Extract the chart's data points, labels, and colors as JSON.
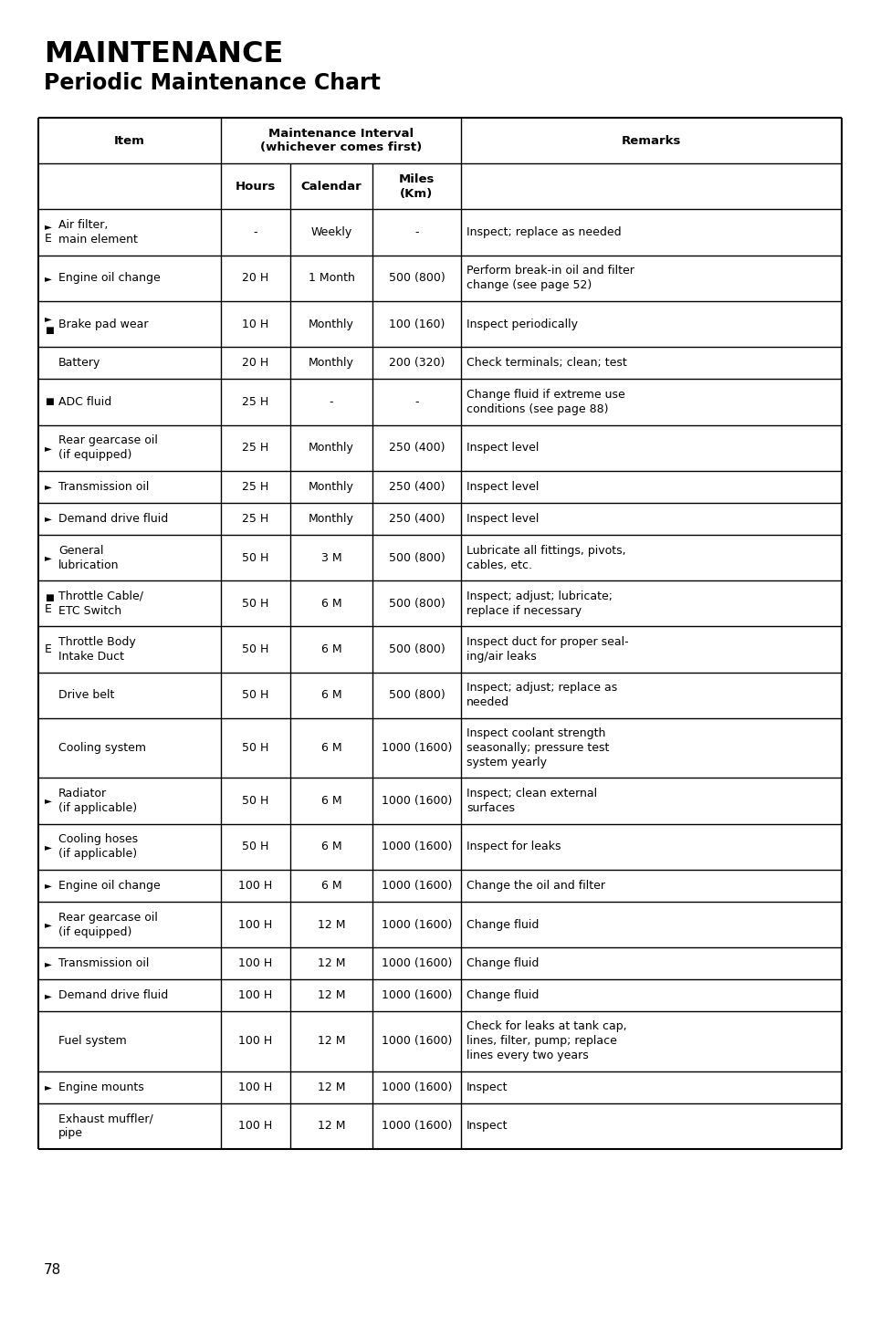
{
  "title_line1": "MAINTENANCE",
  "title_line2": "Periodic Maintenance Chart",
  "page_number": "78",
  "rows": [
    {
      "prefix1": "►",
      "prefix2": "E",
      "item": "Air filter,\nmain element",
      "hours": "-",
      "calendar": "Weekly",
      "miles": "-",
      "remarks": "Inspect; replace as needed",
      "nlines": 2
    },
    {
      "prefix1": "►",
      "prefix2": "",
      "item": "Engine oil change",
      "hours": "20 H",
      "calendar": "1 Month",
      "miles": "500 (800)",
      "remarks": "Perform break-in oil and filter\nchange (see page 52)",
      "nlines": 2
    },
    {
      "prefix1": "►",
      "prefix2": "■",
      "item": "Brake pad wear",
      "hours": "10 H",
      "calendar": "Monthly",
      "miles": "100 (160)",
      "remarks": "Inspect periodically",
      "nlines": 2
    },
    {
      "prefix1": "",
      "prefix2": "",
      "item": "Battery",
      "hours": "20 H",
      "calendar": "Monthly",
      "miles": "200 (320)",
      "remarks": "Check terminals; clean; test",
      "nlines": 1
    },
    {
      "prefix1": "■",
      "prefix2": "",
      "item": "ADC fluid",
      "hours": "25 H",
      "calendar": "-",
      "miles": "-",
      "remarks": "Change fluid if extreme use\nconditions (see page 88)",
      "nlines": 2
    },
    {
      "prefix1": "►",
      "prefix2": "",
      "item": "Rear gearcase oil\n(if equipped)",
      "hours": "25 H",
      "calendar": "Monthly",
      "miles": "250 (400)",
      "remarks": "Inspect level",
      "nlines": 2
    },
    {
      "prefix1": "►",
      "prefix2": "",
      "item": "Transmission oil",
      "hours": "25 H",
      "calendar": "Monthly",
      "miles": "250 (400)",
      "remarks": "Inspect level",
      "nlines": 1
    },
    {
      "prefix1": "►",
      "prefix2": "",
      "item": "Demand drive fluid",
      "hours": "25 H",
      "calendar": "Monthly",
      "miles": "250 (400)",
      "remarks": "Inspect level",
      "nlines": 1
    },
    {
      "prefix1": "►",
      "prefix2": "",
      "item": "General\nlubrication",
      "hours": "50 H",
      "calendar": "3 M",
      "miles": "500 (800)",
      "remarks": "Lubricate all fittings, pivots,\ncables, etc.",
      "nlines": 2
    },
    {
      "prefix1": "■",
      "prefix2": "E",
      "item": "Throttle Cable/\nETC Switch",
      "hours": "50 H",
      "calendar": "6 M",
      "miles": "500 (800)",
      "remarks": "Inspect; adjust; lubricate;\nreplace if necessary",
      "nlines": 2
    },
    {
      "prefix1": "E",
      "prefix2": "",
      "item": "Throttle Body\nIntake Duct",
      "hours": "50 H",
      "calendar": "6 M",
      "miles": "500 (800)",
      "remarks": "Inspect duct for proper seal-\ning/air leaks",
      "nlines": 2
    },
    {
      "prefix1": "",
      "prefix2": "",
      "item": "Drive belt",
      "hours": "50 H",
      "calendar": "6 M",
      "miles": "500 (800)",
      "remarks": "Inspect; adjust; replace as\nneeded",
      "nlines": 2
    },
    {
      "prefix1": "",
      "prefix2": "",
      "item": "Cooling system",
      "hours": "50 H",
      "calendar": "6 M",
      "miles": "1000 (1600)",
      "remarks": "Inspect coolant strength\nseasonally; pressure test\nsystem yearly",
      "nlines": 3
    },
    {
      "prefix1": "►",
      "prefix2": "",
      "item": "Radiator\n(if applicable)",
      "hours": "50 H",
      "calendar": "6 M",
      "miles": "1000 (1600)",
      "remarks": "Inspect; clean external\nsurfaces",
      "nlines": 2
    },
    {
      "prefix1": "►",
      "prefix2": "",
      "item": "Cooling hoses\n(if applicable)",
      "hours": "50 H",
      "calendar": "6 M",
      "miles": "1000 (1600)",
      "remarks": "Inspect for leaks",
      "nlines": 2
    },
    {
      "prefix1": "►",
      "prefix2": "",
      "item": "Engine oil change",
      "hours": "100 H",
      "calendar": "6 M",
      "miles": "1000 (1600)",
      "remarks": "Change the oil and filter",
      "nlines": 1
    },
    {
      "prefix1": "►",
      "prefix2": "",
      "item": "Rear gearcase oil\n(if equipped)",
      "hours": "100 H",
      "calendar": "12 M",
      "miles": "1000 (1600)",
      "remarks": "Change fluid",
      "nlines": 2
    },
    {
      "prefix1": "►",
      "prefix2": "",
      "item": "Transmission oil",
      "hours": "100 H",
      "calendar": "12 M",
      "miles": "1000 (1600)",
      "remarks": "Change fluid",
      "nlines": 1
    },
    {
      "prefix1": "►",
      "prefix2": "",
      "item": "Demand drive fluid",
      "hours": "100 H",
      "calendar": "12 M",
      "miles": "1000 (1600)",
      "remarks": "Change fluid",
      "nlines": 1
    },
    {
      "prefix1": "",
      "prefix2": "",
      "item": "Fuel system",
      "hours": "100 H",
      "calendar": "12 M",
      "miles": "1000 (1600)",
      "remarks": "Check for leaks at tank cap,\nlines, filter, pump; replace\nlines every two years",
      "nlines": 3
    },
    {
      "prefix1": "►",
      "prefix2": "",
      "item": "Engine mounts",
      "hours": "100 H",
      "calendar": "12 M",
      "miles": "1000 (1600)",
      "remarks": "Inspect",
      "nlines": 1
    },
    {
      "prefix1": "",
      "prefix2": "",
      "item": "Exhaust muffler/\npipe",
      "hours": "100 H",
      "calendar": "12 M",
      "miles": "1000 (1600)",
      "remarks": "Inspect",
      "nlines": 2
    }
  ],
  "bg_color": "#ffffff",
  "text_color": "#000000",
  "border_color": "#000000"
}
